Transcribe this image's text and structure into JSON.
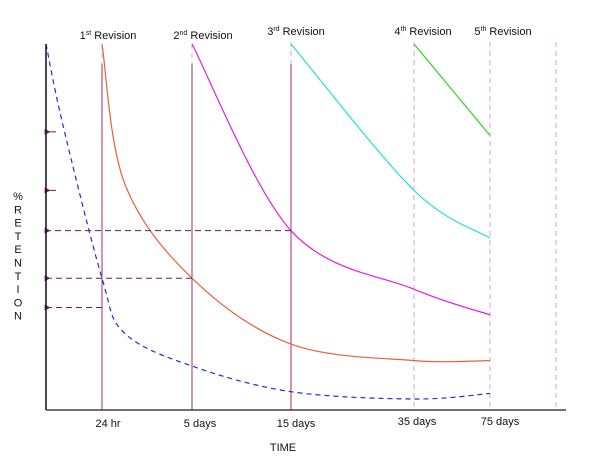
{
  "chart_data": {
    "type": "line",
    "title": "",
    "xlabel": "TIME",
    "ylabel": "% RETENTION",
    "x_ticks": [
      "24 hr",
      "5 days",
      "15 days",
      "35 days",
      "75 days"
    ],
    "revision_labels": [
      {
        "ordinal": "1",
        "suffix": "st",
        "word": "Revision"
      },
      {
        "ordinal": "2",
        "suffix": "nd",
        "word": "Revision"
      },
      {
        "ordinal": "3",
        "suffix": "rd",
        "word": "Revision"
      },
      {
        "ordinal": "4",
        "suffix": "th",
        "word": "Revision"
      },
      {
        "ordinal": "5",
        "suffix": "th",
        "word": "Revision"
      }
    ],
    "retention_scale": [
      0,
      100
    ],
    "series": [
      {
        "color": "#2a2ad6",
        "style": "dashed",
        "points": [
          [
            0,
            100
          ],
          [
            0.3,
            78
          ],
          [
            1,
            36
          ],
          [
            2,
            21
          ],
          [
            5,
            12
          ],
          [
            15,
            5
          ],
          [
            35,
            3
          ],
          [
            75,
            4.5
          ]
        ]
      },
      {
        "color": "#e8623a",
        "style": "solid",
        "points": [
          [
            1,
            100
          ],
          [
            2,
            62
          ],
          [
            5,
            36
          ],
          [
            15,
            18
          ],
          [
            35,
            13.5
          ],
          [
            75,
            13.5
          ]
        ]
      },
      {
        "color": "#e020e0",
        "style": "solid",
        "points": [
          [
            5,
            100
          ],
          [
            15,
            49
          ],
          [
            35,
            33
          ],
          [
            75,
            26
          ]
        ]
      },
      {
        "color": "#22e0e0",
        "style": "solid",
        "points": [
          [
            15,
            100
          ],
          [
            35,
            60
          ],
          [
            75,
            47
          ]
        ]
      },
      {
        "color": "#22dd22",
        "style": "solid",
        "points": [
          [
            35,
            100
          ],
          [
            75,
            75
          ]
        ]
      }
    ],
    "guide_arrows": [
      {
        "retention": 49,
        "at": "15 days"
      },
      {
        "retention": 36,
        "at": "5 days"
      },
      {
        "retention": 28,
        "at": "24 hr"
      },
      {
        "retention": 76
      },
      {
        "retention": 60
      }
    ],
    "colors": {
      "axis": "#1a1a2e",
      "guide_line": "#d8a0e8",
      "arrow": "#7a1a4a",
      "dashed_arrow": "#6a1a5a"
    }
  }
}
